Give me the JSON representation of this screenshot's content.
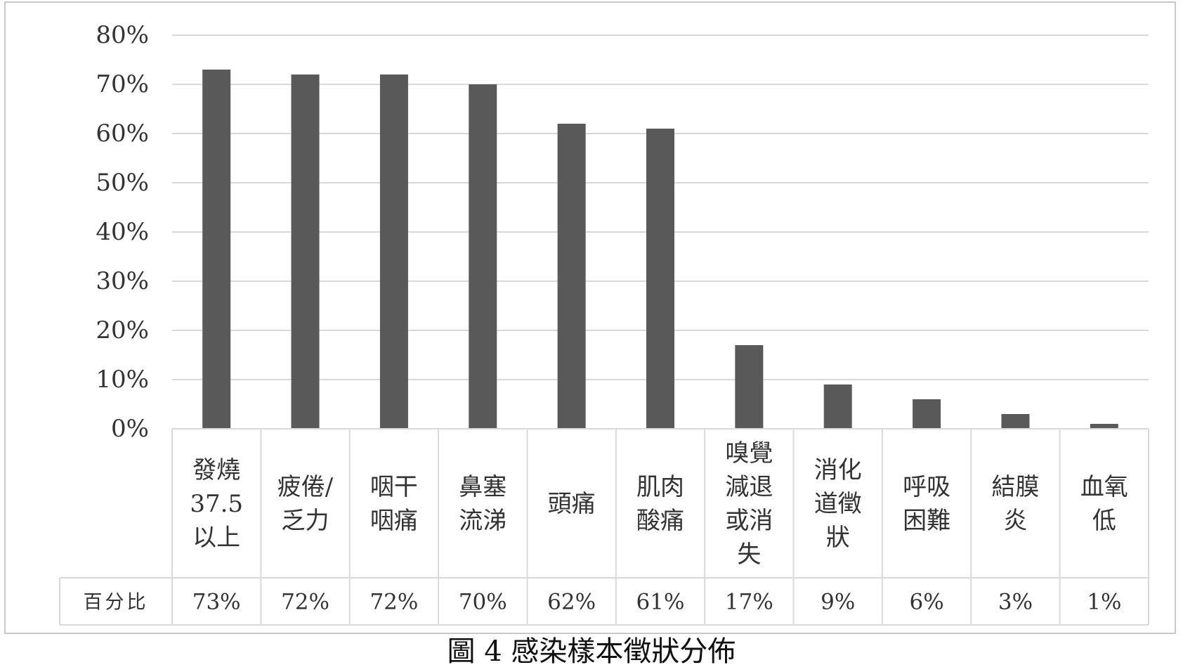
{
  "chart_data": {
    "type": "bar",
    "title": "",
    "xlabel": "",
    "ylabel": "",
    "ylim": [
      0,
      80
    ],
    "y_ticks": [
      0,
      10,
      20,
      30,
      40,
      50,
      60,
      70,
      80
    ],
    "y_tick_labels": [
      "0%",
      "10%",
      "20%",
      "30%",
      "40%",
      "50%",
      "60%",
      "70%",
      "80%"
    ],
    "grid": true,
    "categories": [
      "發燒\n37.5\n以上",
      "疲倦/\n乏力",
      "咽干\n咽痛",
      "鼻塞\n流涕",
      "頭痛",
      "肌肉\n酸痛",
      "嗅覺\n減退\n或消\n失",
      "消化\n道徵\n狀",
      "呼吸\n困難",
      "結膜\n炎",
      "血氧\n低"
    ],
    "values": [
      73,
      72,
      72,
      70,
      62,
      61,
      17,
      9,
      6,
      3,
      1
    ],
    "value_labels": [
      "73%",
      "72%",
      "72%",
      "70%",
      "62%",
      "61%",
      "17%",
      "9%",
      "6%",
      "3%",
      "1%"
    ],
    "table_row_label": "百分比",
    "bar_color": "#595959",
    "grid_color": "#d9d9d9"
  },
  "caption": "圖 4 感染樣本徵狀分佈"
}
